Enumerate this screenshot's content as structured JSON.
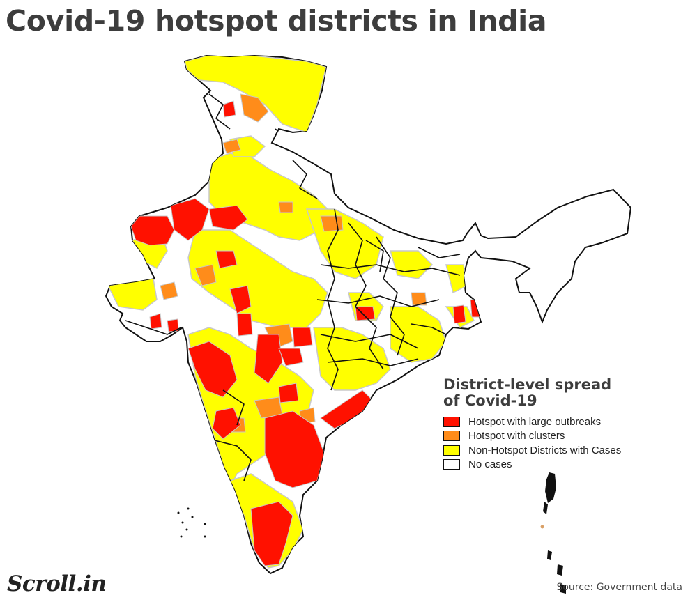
{
  "title": "Covid-19 hotspot districts in India",
  "legend": {
    "title_line1": "District-level spread",
    "title_line2": "of Covid-19",
    "items": [
      {
        "label": "Hotspot with large outbreaks",
        "color": "#ff1100"
      },
      {
        "label": "Hotspot with clusters",
        "color": "#ff8c1a"
      },
      {
        "label": "Non-Hotspot Districts with Cases",
        "color": "#ffff00"
      },
      {
        "label": "No cases",
        "color": "#ffffff"
      }
    ]
  },
  "map": {
    "border_color": "#111111",
    "district_outline": "#c8c8c8",
    "category_colors": {
      "hotspot_large": "#ff1100",
      "hotspot_clusters": "#ff8c1a",
      "non_hotspot": "#ffff00",
      "no_cases": "#ffffff"
    }
  },
  "logo": "Scroll.in",
  "source": "Source: Government data"
}
